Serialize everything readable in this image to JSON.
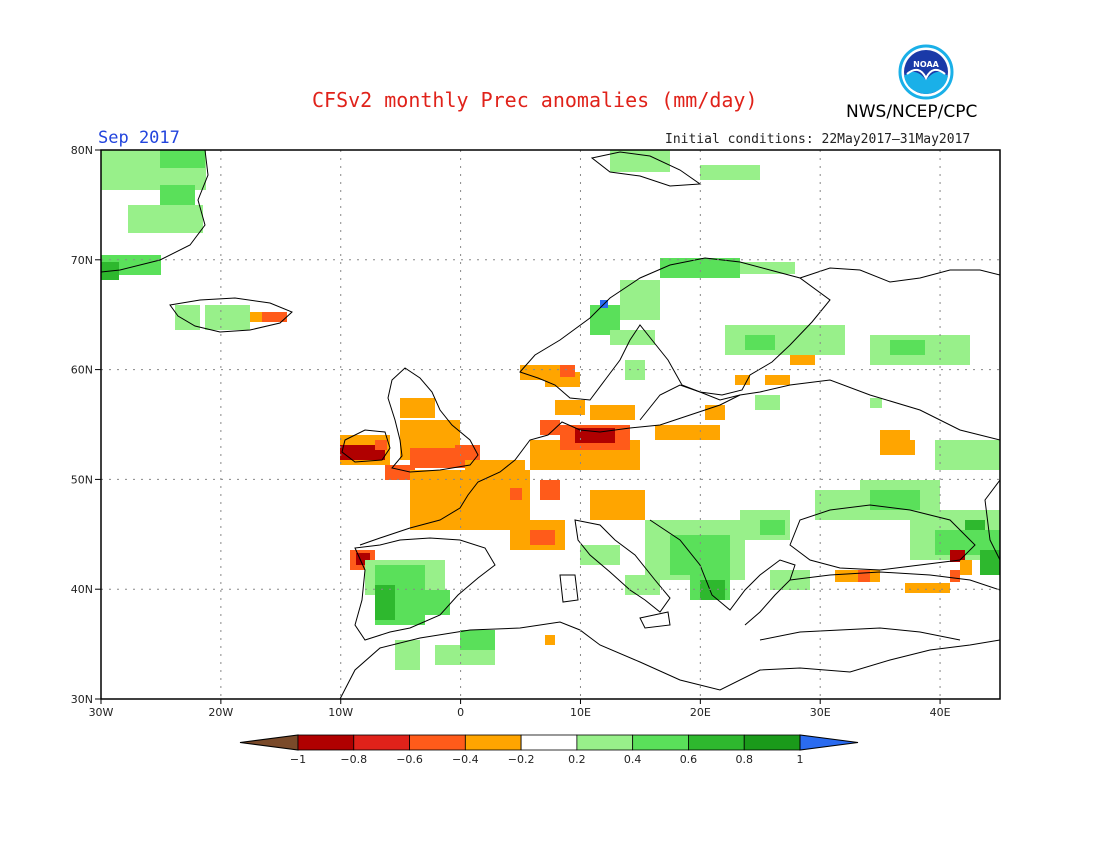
{
  "title": "CFSv2 monthly Prec anomalies (mm/day)",
  "org": "NWS/NCEP/CPC",
  "logo_text": "NOAA",
  "month": "Sep 2017",
  "initial_conditions": "Initial conditions: 22May2017–31May2017",
  "lat_labels": [
    "80N",
    "70N",
    "60N",
    "50N",
    "40N",
    "30N"
  ],
  "lon_labels": [
    "30W",
    "20W",
    "10W",
    "0",
    "10E",
    "20E",
    "30E",
    "40E"
  ],
  "colorbar": {
    "tick_labels": [
      "−1",
      "−0.8",
      "−0.6",
      "−0.4",
      "−0.2",
      "0.2",
      "0.4",
      "0.6",
      "0.8",
      "1"
    ],
    "colors": [
      "#7a4a2a",
      "#b00000",
      "#e0221a",
      "#ff5b1a",
      "#ffa500",
      "#ffffff",
      "#98f08a",
      "#5ae05a",
      "#2eb82e",
      "#1a9a1a",
      "#2a6bf0"
    ]
  },
  "colors": {
    "title": "#e0221a",
    "month": "#2244dd",
    "dry_strong": "#b00000",
    "dry_mid": "#ff5b1a",
    "dry_weak": "#ffa500",
    "wet_weak": "#98f08a",
    "wet_mid": "#5ae05a",
    "wet_strong": "#2eb82e",
    "wet_max": "#2a6bf0"
  }
}
